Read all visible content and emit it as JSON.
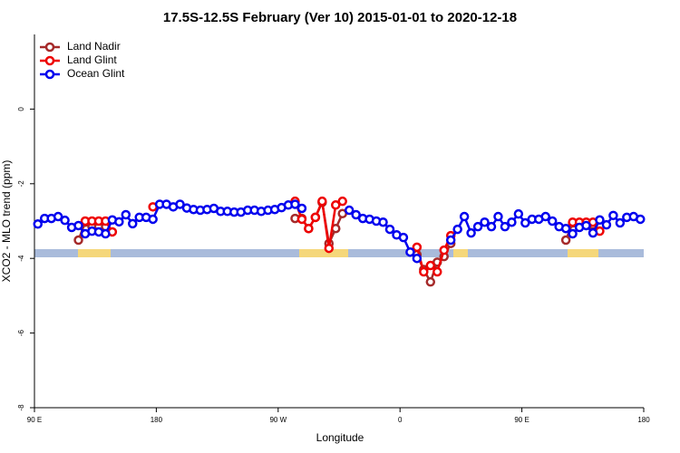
{
  "chart_data": {
    "type": "line",
    "title": "17.5S-12.5S February (Ver 10)   2015-01-01 to 2020-12-18",
    "xlabel": "Longitude",
    "ylabel": "XCO2 - MLO trend (ppm)",
    "x": [
      92.5,
      97.5,
      102.5,
      107.5,
      112.5,
      117.5,
      122.5,
      127.5,
      132.5,
      137.5,
      142.5,
      147.5,
      152.5,
      157.5,
      162.5,
      167.5,
      172.5,
      177.5,
      182.5,
      187.5,
      192.5,
      197.5,
      202.5,
      207.5,
      212.5,
      217.5,
      222.5,
      227.5,
      232.5,
      237.5,
      242.5,
      247.5,
      252.5,
      257.5,
      262.5,
      267.5,
      272.5,
      277.5,
      282.5,
      287.5,
      292.5,
      297.5,
      302.5,
      307.5,
      312.5,
      317.5,
      322.5,
      327.5,
      332.5,
      337.5,
      342.5,
      347.5,
      352.5,
      357.5,
      362.5,
      367.5,
      372.5,
      377.5,
      382.5,
      387.5,
      392.5,
      397.5,
      402.5,
      407.5,
      412.5,
      417.5,
      422.5,
      427.5,
      432.5,
      437.5,
      442.5,
      447.5,
      452.5,
      457.5,
      462.5,
      467.5,
      472.5,
      477.5,
      482.5,
      487.5,
      492.5,
      497.5,
      502.5,
      507.5,
      512.5,
      517.5,
      522.5,
      527.5,
      532.5,
      537.5
    ],
    "xlim": [
      90,
      540
    ],
    "xticks": [
      {
        "value": 90,
        "label": "90 E"
      },
      {
        "value": 180,
        "label": "180"
      },
      {
        "value": 270,
        "label": "90 W"
      },
      {
        "value": 360,
        "label": "0"
      },
      {
        "value": 450,
        "label": "90 E"
      },
      {
        "value": 540,
        "label": "180"
      }
    ],
    "ylim": [
      -8,
      2
    ],
    "yticks": [
      0,
      -2,
      -4,
      -6,
      -8
    ],
    "legend": "top-left",
    "series": [
      {
        "name": "Land Nadir",
        "color": "#a52a2a",
        "values": [
          null,
          null,
          null,
          null,
          null,
          null,
          -3.51,
          -3.03,
          -3.15,
          -3.15,
          -3.15,
          null,
          null,
          null,
          null,
          null,
          null,
          null,
          null,
          null,
          null,
          null,
          null,
          null,
          null,
          null,
          null,
          null,
          null,
          null,
          null,
          null,
          null,
          null,
          null,
          null,
          null,
          null,
          -2.93,
          -2.93,
          -3.2,
          -2.9,
          -2.5,
          -3.6,
          -3.2,
          -2.8,
          null,
          null,
          null,
          null,
          null,
          null,
          null,
          null,
          null,
          null,
          -3.9,
          -4.3,
          -4.63,
          -4.1,
          -3.95,
          -3.6,
          null,
          null,
          null,
          null,
          null,
          null,
          null,
          null,
          null,
          null,
          null,
          null,
          null,
          null,
          null,
          null,
          -3.51,
          -3.05,
          -3.1,
          -3.1,
          -3.1,
          null,
          null,
          null,
          null,
          null,
          null,
          null
        ]
      },
      {
        "name": "Land Glint",
        "color": "#ee0000",
        "values": [
          null,
          null,
          null,
          null,
          null,
          null,
          null,
          -3.0,
          -3.0,
          -3.0,
          -3.0,
          -3.29,
          null,
          null,
          null,
          null,
          null,
          -2.62,
          null,
          null,
          null,
          null,
          null,
          null,
          null,
          null,
          null,
          null,
          null,
          null,
          null,
          null,
          null,
          null,
          null,
          null,
          null,
          null,
          -2.47,
          -2.95,
          -3.2,
          -2.9,
          -2.47,
          -3.73,
          -2.57,
          -2.47,
          null,
          null,
          null,
          null,
          null,
          null,
          null,
          null,
          null,
          null,
          -3.7,
          -4.36,
          -4.19,
          -4.36,
          -3.78,
          -3.39,
          null,
          null,
          null,
          null,
          null,
          null,
          null,
          null,
          null,
          null,
          null,
          null,
          null,
          null,
          null,
          null,
          null,
          -3.03,
          -3.03,
          -3.03,
          -3.03,
          -3.27,
          null,
          null,
          null,
          null,
          null,
          null
        ]
      },
      {
        "name": "Ocean Glint",
        "color": "#0000ee",
        "values": [
          -3.08,
          -2.93,
          -2.93,
          -2.88,
          -2.98,
          -3.17,
          -3.12,
          -3.34,
          -3.27,
          -3.29,
          -3.34,
          -2.97,
          -3.02,
          -2.83,
          -3.07,
          -2.9,
          -2.9,
          -2.95,
          -2.55,
          -2.55,
          -2.62,
          -2.55,
          -2.65,
          -2.69,
          -2.71,
          -2.69,
          -2.66,
          -2.74,
          -2.74,
          -2.76,
          -2.76,
          -2.71,
          -2.71,
          -2.74,
          -2.71,
          -2.69,
          -2.64,
          -2.57,
          -2.55,
          -2.66,
          null,
          null,
          null,
          null,
          null,
          null,
          -2.71,
          -2.83,
          -2.93,
          -2.95,
          -3.0,
          -3.03,
          -3.22,
          -3.37,
          -3.44,
          -3.83,
          -4.0,
          null,
          null,
          null,
          null,
          -3.51,
          -3.22,
          -2.88,
          -3.32,
          -3.15,
          -3.03,
          -3.15,
          -2.88,
          -3.15,
          -3.03,
          -2.81,
          -3.05,
          -2.95,
          -2.95,
          -2.88,
          -3.0,
          -3.15,
          -3.2,
          -3.34,
          -3.17,
          -3.12,
          -3.32,
          -2.97,
          -3.1,
          -2.85,
          -3.05,
          -2.9,
          -2.88,
          -2.95
        ]
      }
    ]
  }
}
